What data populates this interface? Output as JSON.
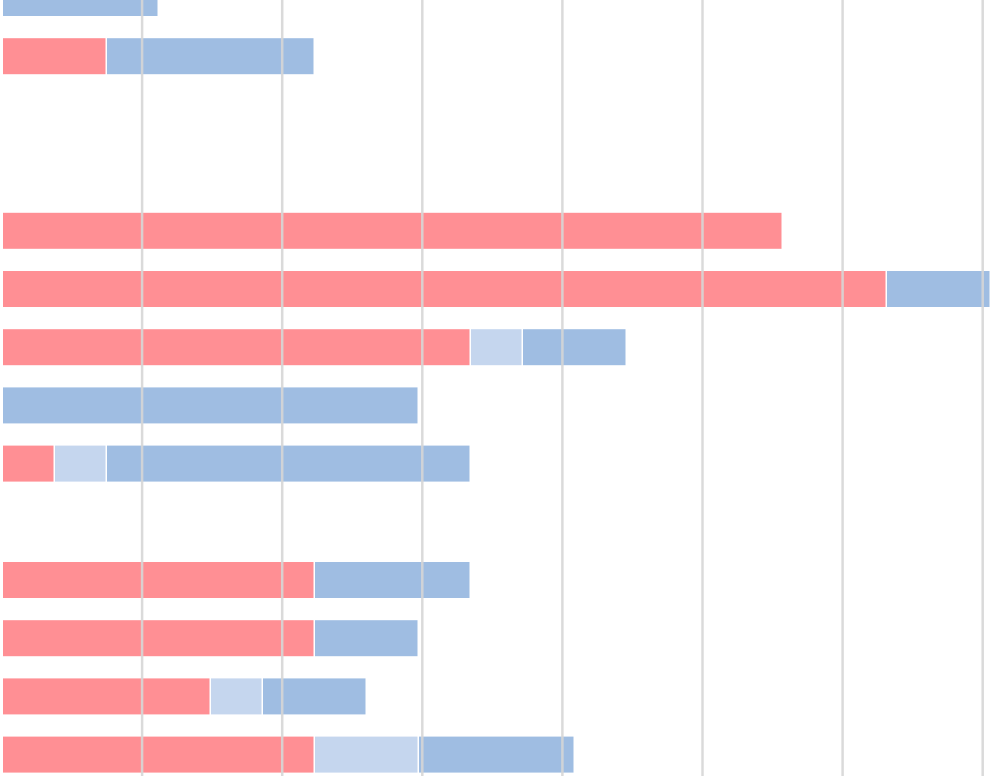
{
  "chart_data": {
    "type": "bar",
    "orientation": "horizontal",
    "stacked": true,
    "title": "",
    "xlabel": "",
    "ylabel": "",
    "grid": true,
    "legend": "none",
    "tick_labels_visible": false,
    "xlim": [
      0,
      19
    ],
    "colors": {
      "series_1": "#ff8f94",
      "series_2": "#c5d6ee",
      "series_3": "#9fbde2",
      "gridline": "#d6d6d6"
    },
    "rows": [
      {
        "values": [
          0,
          0,
          3
        ]
      },
      {
        "values": [
          2,
          0,
          4
        ]
      },
      null,
      null,
      {
        "values": [
          15,
          0,
          0
        ]
      },
      {
        "values": [
          17,
          0,
          2
        ]
      },
      {
        "values": [
          9,
          1,
          2
        ]
      },
      {
        "values": [
          0,
          0,
          8
        ]
      },
      {
        "values": [
          1,
          1,
          7
        ]
      },
      null,
      {
        "values": [
          6,
          0,
          3
        ]
      },
      {
        "values": [
          6,
          0,
          2
        ]
      },
      {
        "values": [
          4,
          1,
          2
        ]
      },
      {
        "values": [
          6,
          2,
          3
        ]
      }
    ]
  }
}
